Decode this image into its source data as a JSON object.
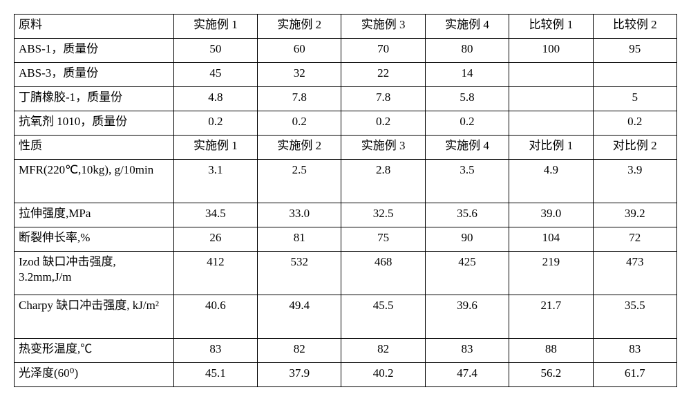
{
  "header1": {
    "c0": "原料",
    "c1": "实施例 1",
    "c2": "实施例 2",
    "c3": "实施例 3",
    "c4": "实施例 4",
    "c5": "比较例 1",
    "c6": "比较例 2"
  },
  "rows1": [
    {
      "label": "ABS-1，质量份",
      "v": [
        "50",
        "60",
        "70",
        "80",
        "100",
        "95"
      ]
    },
    {
      "label": "ABS-3，质量份",
      "v": [
        "45",
        "32",
        "22",
        "14",
        "",
        ""
      ]
    },
    {
      "label": "丁腈橡胶-1，质量份",
      "v": [
        "4.8",
        "7.8",
        "7.8",
        "5.8",
        "",
        "5"
      ]
    },
    {
      "label": "抗氧剂 1010，质量份",
      "v": [
        "0.2",
        "0.2",
        "0.2",
        "0.2",
        "",
        "0.2"
      ]
    }
  ],
  "header2": {
    "c0": "性质",
    "c1": "实施例 1",
    "c2": "实施例 2",
    "c3": "实施例 3",
    "c4": "实施例 4",
    "c5": "对比例 1",
    "c6": "对比例 2"
  },
  "rows2": [
    {
      "label": "MFR(220℃,10kg), g/10min",
      "v": [
        "3.1",
        "2.5",
        "2.8",
        "3.5",
        "4.9",
        "3.9"
      ],
      "tall": true
    },
    {
      "label": "拉伸强度,MPa",
      "v": [
        "34.5",
        "33.0",
        "32.5",
        "35.6",
        "39.0",
        "39.2"
      ]
    },
    {
      "label": "断裂伸长率,%",
      "v": [
        "26",
        "81",
        "75",
        "90",
        "104",
        "72"
      ]
    },
    {
      "label": "Izod 缺口冲击强度, 3.2mm,J/m",
      "v": [
        "412",
        "532",
        "468",
        "425",
        "219",
        "473"
      ],
      "tall": true
    },
    {
      "label": "Charpy 缺口冲击强度, kJ/m²",
      "v": [
        "40.6",
        "49.4",
        "45.5",
        "39.6",
        "21.7",
        "35.5"
      ],
      "tall": true
    },
    {
      "label": "热变形温度,℃",
      "v": [
        "83",
        "82",
        "82",
        "83",
        "88",
        "83"
      ]
    },
    {
      "label": "光泽度(60⁰)",
      "v": [
        "45.1",
        "37.9",
        "40.2",
        "47.4",
        "56.2",
        "61.7"
      ]
    }
  ]
}
